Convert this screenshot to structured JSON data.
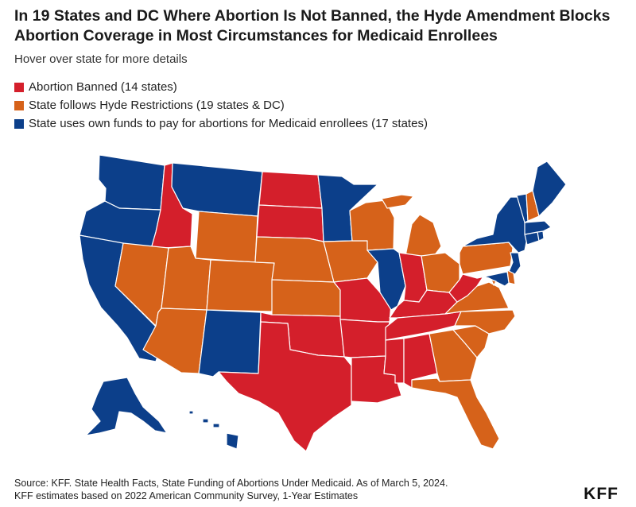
{
  "title_lines": [
    "In 19 States and DC Where Abortion Is Not Banned, the Hyde Amendment Blocks",
    "Abortion Coverage in Most Circumstances for Medicaid Enrollees"
  ],
  "subtitle": "Hover over state for more details",
  "colors": {
    "banned": "#d41f2b",
    "hyde": "#d6621a",
    "own_funds": "#0c3f8a"
  },
  "legend": [
    {
      "key": "banned",
      "label": "Abortion Banned (14 states)"
    },
    {
      "key": "hyde",
      "label": "State follows Hyde Restrictions (19 states & DC)"
    },
    {
      "key": "own_funds",
      "label": "State uses own funds to pay for abortions for Medicaid enrollees (17 states)"
    }
  ],
  "states": {
    "WA": "own_funds",
    "OR": "own_funds",
    "CA": "own_funds",
    "ID": "banned",
    "NV": "hyde",
    "MT": "own_funds",
    "WY": "hyde",
    "UT": "hyde",
    "AZ": "hyde",
    "CO": "hyde",
    "NM": "own_funds",
    "ND": "banned",
    "SD": "banned",
    "NE": "hyde",
    "KS": "hyde",
    "OK": "banned",
    "TX": "banned",
    "MN": "own_funds",
    "IA": "hyde",
    "MO": "banned",
    "AR": "banned",
    "LA": "banned",
    "WI": "hyde",
    "IL": "own_funds",
    "MI": "hyde",
    "IN": "banned",
    "OH": "hyde",
    "KY": "banned",
    "TN": "banned",
    "MS": "banned",
    "AL": "banned",
    "GA": "hyde",
    "FL": "hyde",
    "SC": "hyde",
    "NC": "hyde",
    "VA": "hyde",
    "WV": "banned",
    "PA": "hyde",
    "NY": "own_funds",
    "NJ": "own_funds",
    "DE": "hyde",
    "MD": "own_funds",
    "DC": "hyde",
    "CT": "own_funds",
    "RI": "own_funds",
    "MA": "own_funds",
    "VT": "own_funds",
    "NH": "hyde",
    "ME": "own_funds",
    "AK": "own_funds",
    "HI": "own_funds"
  },
  "source_lines": [
    "Source: KFF. State Health Facts, State Funding of Abortions Under Medicaid. As of March 5, 2024.",
    "KFF estimates based on 2022 American Community Survey, 1-Year Estimates"
  ],
  "logo": "KFF"
}
